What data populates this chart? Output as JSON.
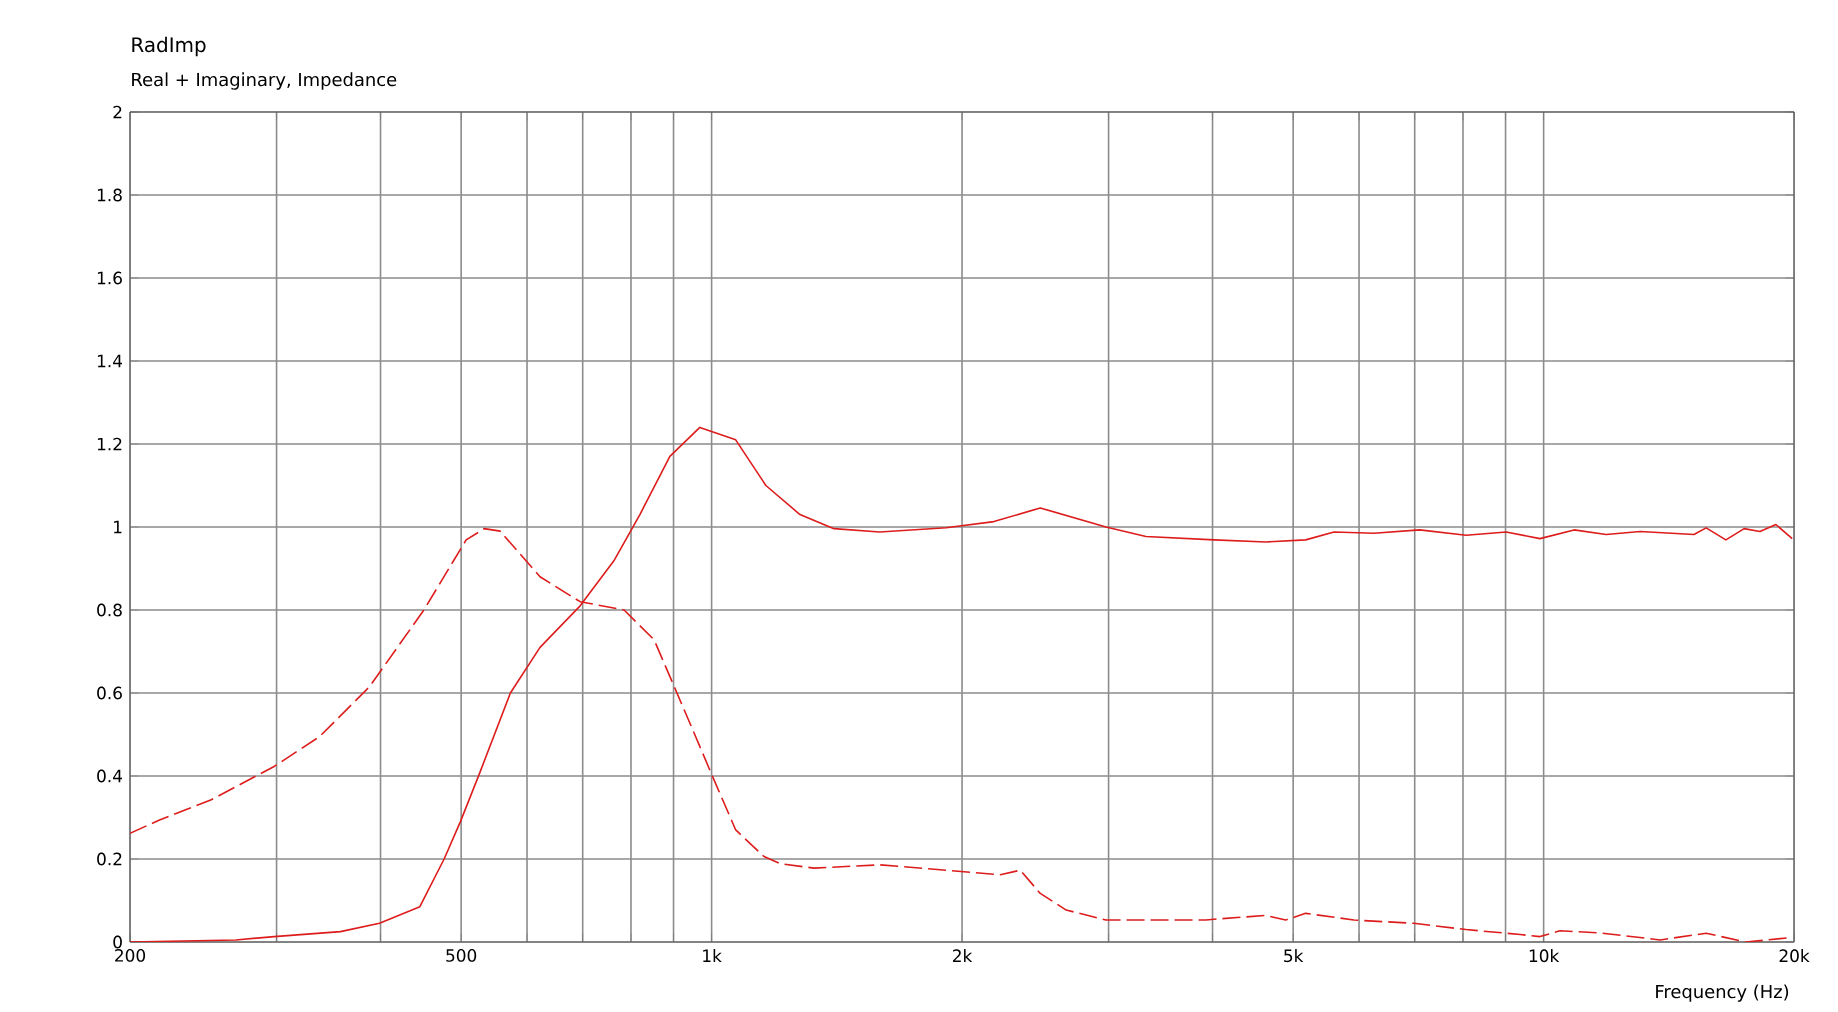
{
  "chart_data": {
    "type": "line",
    "title": "RadImp",
    "subtitle": "Real + Imaginary, Impedance",
    "xlabel": "Frequency  (Hz)",
    "log": "x",
    "grid": true,
    "marker": "none",
    "xlim": [
      200,
      20000
    ],
    "ylim": [
      0,
      2
    ],
    "xticks": [
      200,
      {
        "value": 300,
        "label": null
      },
      {
        "value": 400,
        "label": null
      },
      500,
      {
        "value": 600,
        "label": null
      },
      {
        "value": 700,
        "label": null
      },
      {
        "value": 800,
        "label": null
      },
      {
        "value": 900,
        "label": null
      },
      {
        "value": 1000,
        "label": "1k"
      },
      {
        "value": 2000,
        "label": "2k"
      },
      {
        "value": 3000,
        "label": null
      },
      {
        "value": 4000,
        "label": null
      },
      {
        "value": 5000,
        "label": "5k"
      },
      {
        "value": 6000,
        "label": null
      },
      {
        "value": 7000,
        "label": null
      },
      {
        "value": 8000,
        "label": null
      },
      {
        "value": 9000,
        "label": null
      },
      {
        "value": 10000,
        "label": "10k"
      },
      {
        "value": 20000,
        "label": "20k"
      }
    ],
    "yticks": [
      0,
      0.2,
      0.4,
      0.6,
      0.8,
      1,
      1.2,
      1.4,
      1.6,
      1.8,
      2
    ],
    "series": [
      {
        "color": "#dd1c1c",
        "line_style": "solid",
        "x": [
          200,
          268,
          298,
          358,
          399,
          446,
          477,
          499,
          527,
          573,
          622,
          695,
          764,
          820,
          891,
          968,
          1069,
          1162,
          1277,
          1403,
          1592,
          1914,
          2184,
          2483,
          2979,
          3327,
          4018,
          4636,
          5176,
          5598,
          6252,
          7096,
          8068,
          9016,
          9900,
          10880,
          11890,
          13060,
          15160,
          15680,
          16560,
          17420,
          18200,
          19020,
          19900
        ],
        "values": [
          0.0,
          0.005,
          0.013,
          0.025,
          0.045,
          0.085,
          0.2,
          0.29,
          0.41,
          0.6,
          0.71,
          0.81,
          0.92,
          1.03,
          1.17,
          1.24,
          1.21,
          1.1,
          1.03,
          0.996,
          0.988,
          0.998,
          1.013,
          1.046,
          1.0,
          0.977,
          0.969,
          0.964,
          0.969,
          0.988,
          0.985,
          0.993,
          0.98,
          0.988,
          0.972,
          0.993,
          0.982,
          0.989,
          0.982,
          0.998,
          0.969,
          0.996,
          0.989,
          1.006,
          0.972
        ]
      },
      {
        "color": "#dd1c1c",
        "line_style": "dashed",
        "x": [
          200,
          217,
          250,
          298,
          338,
          388,
          451,
          507,
          533,
          557,
          622,
          695,
          785,
          853,
          953,
          1007,
          1069,
          1156,
          1208,
          1327,
          1592,
          1914,
          2223,
          2350,
          2483,
          2668,
          2979,
          3929,
          4084,
          4636,
          4898,
          5176,
          5916,
          6982,
          8068,
          9376,
          9900,
          10460,
          11690,
          13800,
          15680,
          17500,
          19900
        ],
        "values": [
          0.262,
          0.294,
          0.342,
          0.423,
          0.495,
          0.615,
          0.8,
          0.969,
          0.996,
          0.99,
          0.88,
          0.82,
          0.8,
          0.728,
          0.503,
          0.39,
          0.27,
          0.206,
          0.189,
          0.178,
          0.186,
          0.173,
          0.162,
          0.173,
          0.117,
          0.077,
          0.053,
          0.053,
          0.056,
          0.064,
          0.053,
          0.069,
          0.053,
          0.045,
          0.03,
          0.018,
          0.013,
          0.027,
          0.022,
          0.005,
          0.021,
          0.0,
          0.011
        ]
      }
    ]
  }
}
